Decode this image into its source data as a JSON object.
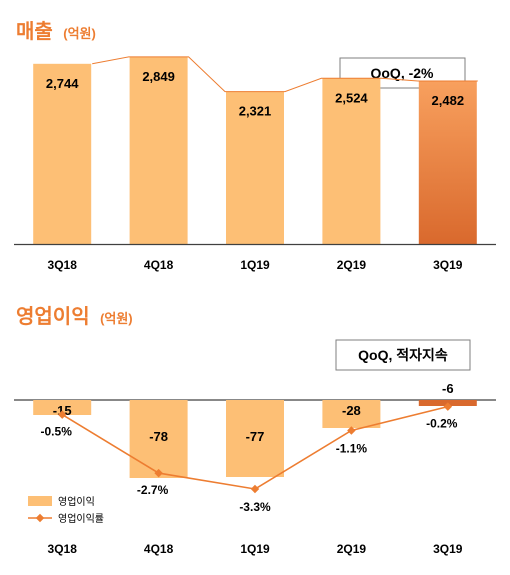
{
  "colors": {
    "title": "#ED7D31",
    "bar": "#FDBF75",
    "bar_highlight_top": "#F8A05E",
    "bar_highlight_bottom": "#D9692D",
    "line": "#ED7D31",
    "axis": "#404040",
    "box_border": "#7F7F7F"
  },
  "chart_data": [
    {
      "type": "bar",
      "title": "매출",
      "unit": "(억원)",
      "annotation": "QoQ, -2%",
      "categories": [
        "3Q18",
        "4Q18",
        "1Q19",
        "2Q19",
        "3Q19"
      ],
      "values": [
        2744,
        2849,
        2321,
        2524,
        2482
      ],
      "value_labels": [
        "2,744",
        "2,849",
        "2,321",
        "2,524",
        "2,482"
      ],
      "highlight_index": 4,
      "ylim": [
        0,
        3000
      ],
      "grid": false
    },
    {
      "type": "bar",
      "title": "영업이익",
      "unit": "(억원)",
      "annotation": "QoQ, 적자지속",
      "categories": [
        "3Q18",
        "4Q18",
        "1Q19",
        "2Q19",
        "3Q19"
      ],
      "ylim": [
        -85,
        0
      ],
      "grid": false,
      "legend_position": "bottom-left",
      "series": [
        {
          "name": "영업이익",
          "type": "bar",
          "values": [
            -15,
            -78,
            -77,
            -28,
            -6
          ],
          "labels": [
            "-15",
            "-78",
            "-77",
            "-28",
            "-6"
          ]
        },
        {
          "name": "영업이익률",
          "type": "line",
          "values": [
            -0.5,
            -2.7,
            -3.3,
            -1.1,
            -0.2
          ],
          "labels": [
            "-0.5%",
            "-2.7%",
            "-3.3%",
            "-1.1%",
            "-0.2%"
          ],
          "ylim": [
            -3.6,
            0.8
          ]
        }
      ]
    }
  ]
}
